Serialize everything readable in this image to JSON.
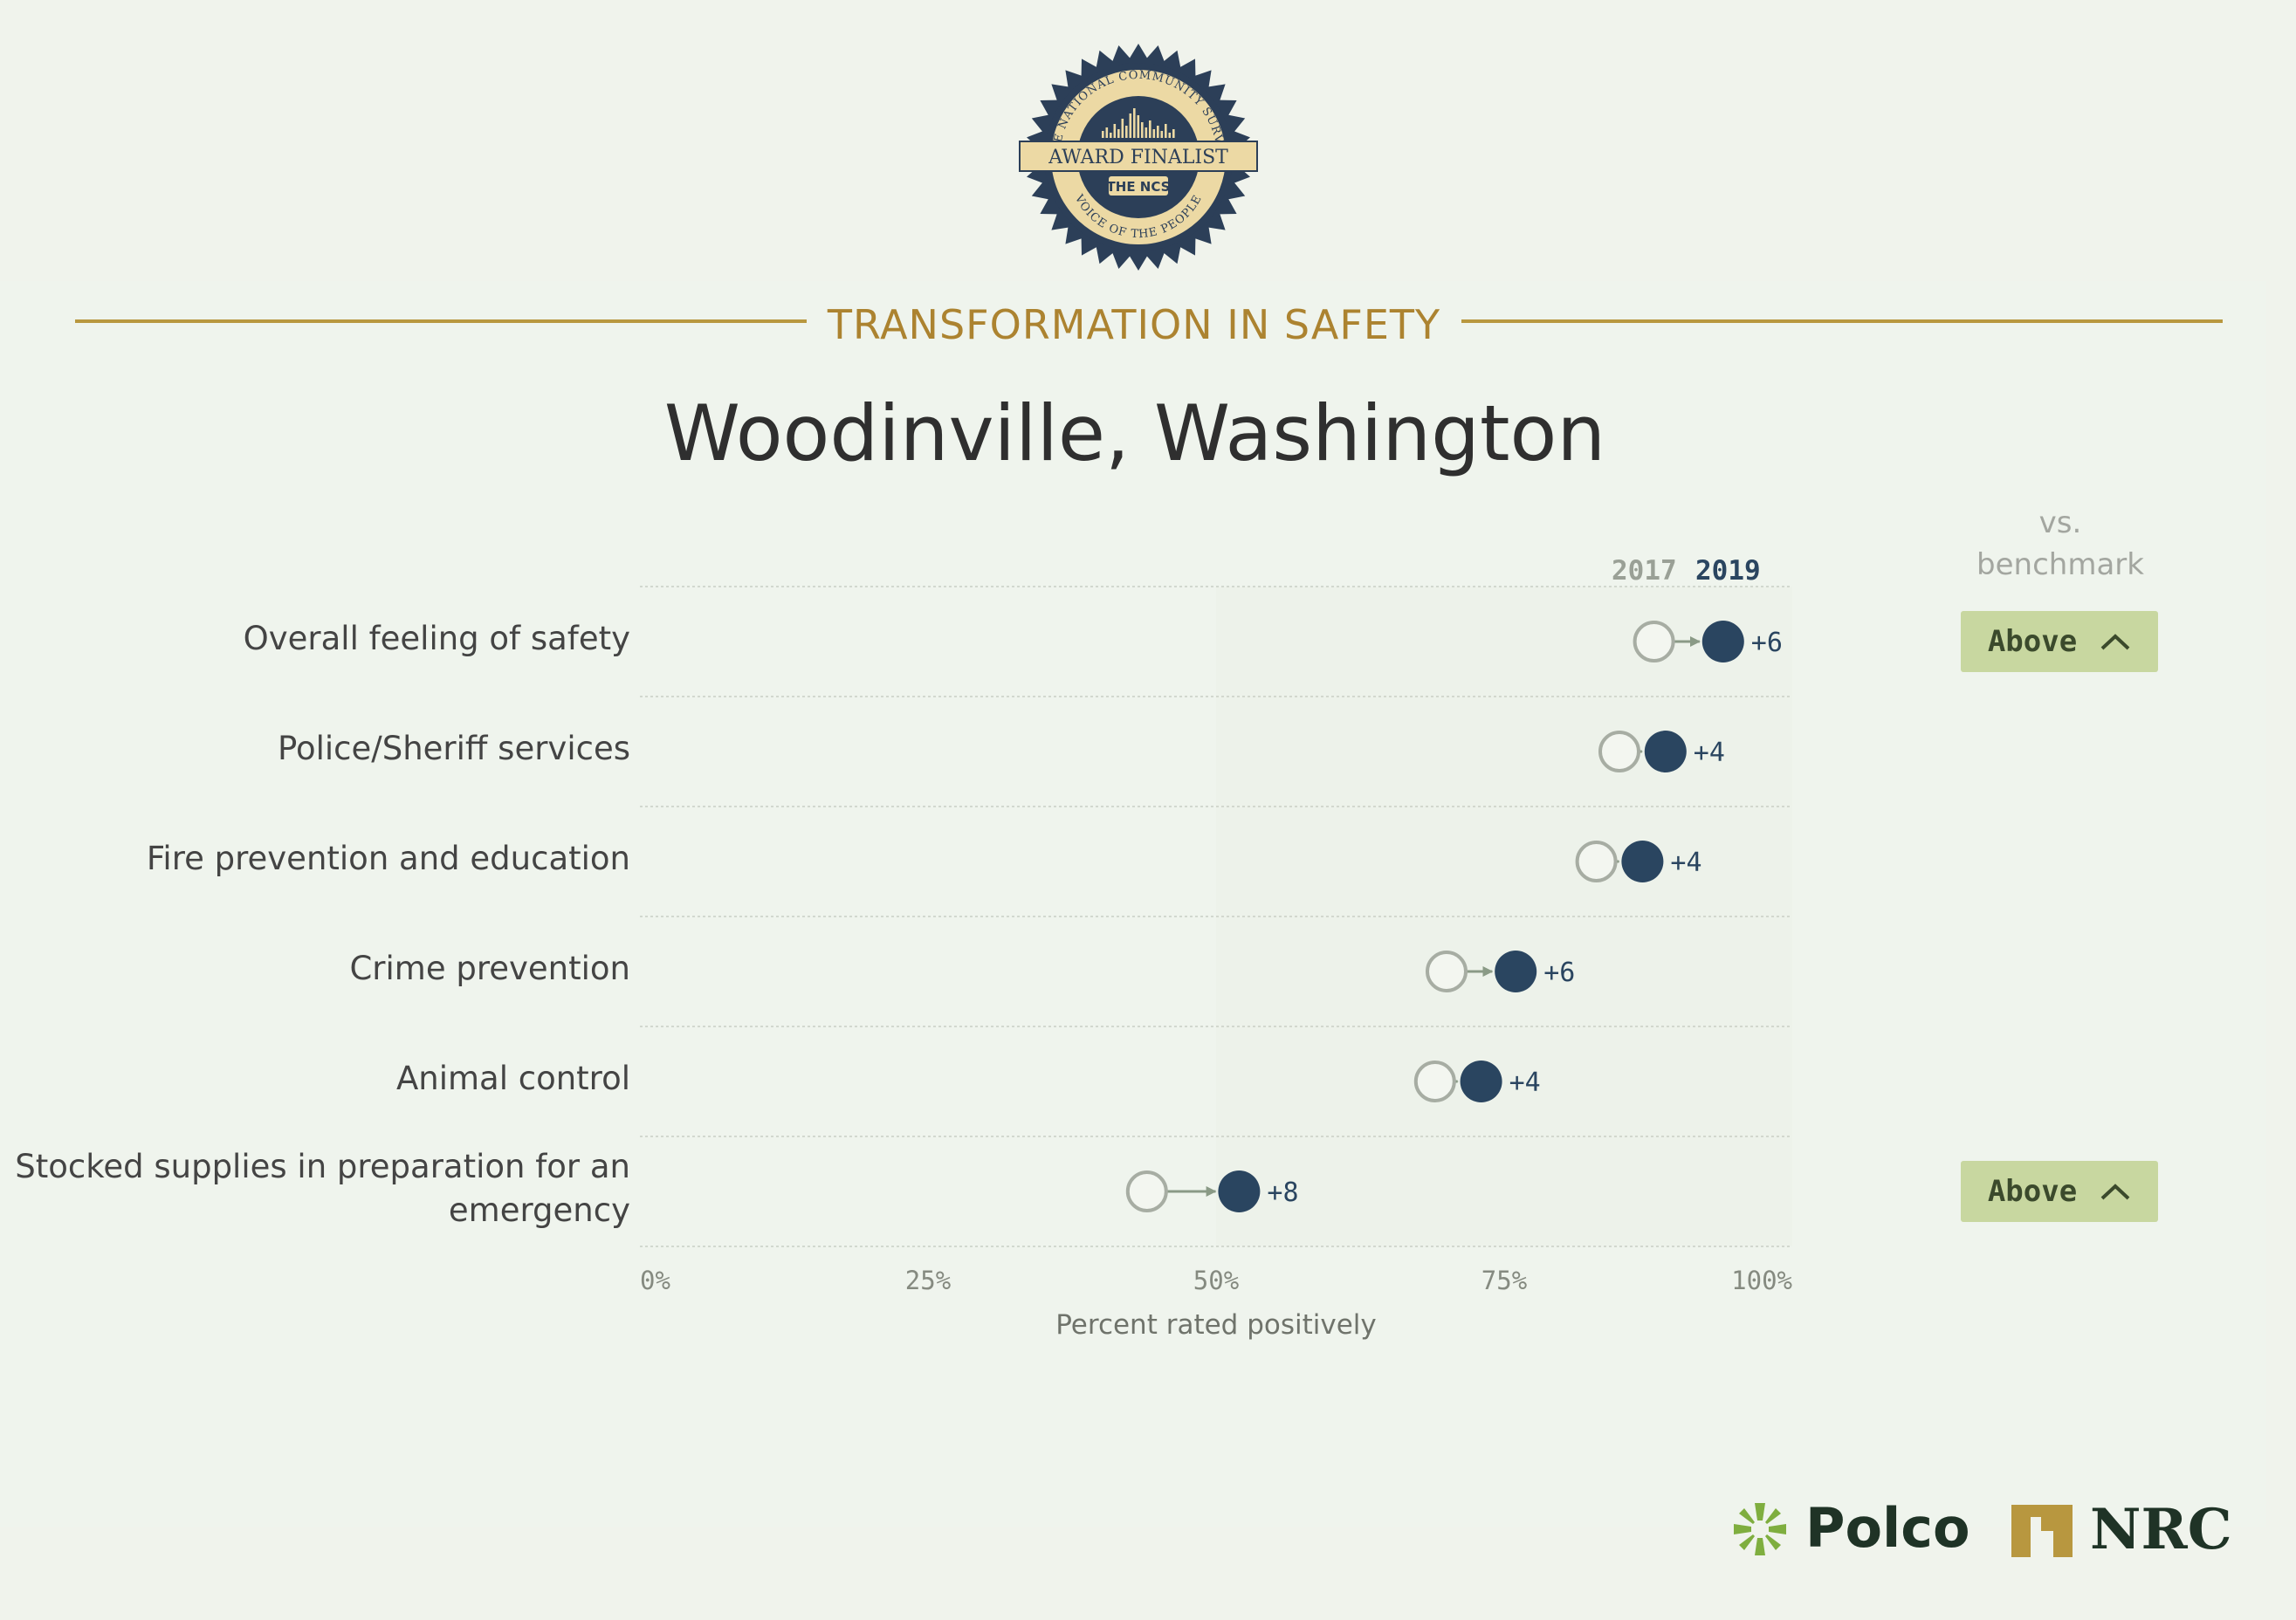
{
  "badge": {
    "arc_top": "THE NATIONAL COMMUNITY SURVEY",
    "ribbon": "AWARD FINALIST",
    "mark": "THE NCS",
    "arc_bottom": "VOICE OF THE PEOPLE"
  },
  "header": {
    "kicker": "TRANSFORMATION IN SAFETY",
    "title": "Woodinville, Washington"
  },
  "legend": {
    "year_old": "2017",
    "year_new": "2019",
    "benchmark_line1": "vs.",
    "benchmark_line2": "benchmark"
  },
  "colors": {
    "accent_gold": "#b8973f",
    "dot_2019": "#2a4560",
    "dot_2017": "#a7ada3",
    "benchmark_badge": "#c8d7a0"
  },
  "chart_data": {
    "type": "dumbbell",
    "x_label": "Percent rated positively",
    "x_ticks": [
      "0%",
      "25%",
      "50%",
      "75%",
      "100%"
    ],
    "xlim": [
      0,
      100
    ],
    "series": [
      {
        "name": "2017"
      },
      {
        "name": "2019"
      }
    ],
    "rows": [
      {
        "label": "Overall feeling of safety",
        "y2017": 88,
        "y2019": 94,
        "change": "+6",
        "benchmark": "Above"
      },
      {
        "label": "Police/Sheriff services",
        "y2017": 85,
        "y2019": 89,
        "change": "+4",
        "benchmark": ""
      },
      {
        "label": "Fire prevention and education",
        "y2017": 83,
        "y2019": 87,
        "change": "+4",
        "benchmark": ""
      },
      {
        "label": "Crime prevention",
        "y2017": 70,
        "y2019": 76,
        "change": "+6",
        "benchmark": ""
      },
      {
        "label": "Animal control",
        "y2017": 69,
        "y2019": 73,
        "change": "+4",
        "benchmark": ""
      },
      {
        "label": "Stocked supplies in preparation for an emergency",
        "y2017": 44,
        "y2019": 52,
        "change": "+8",
        "benchmark": "Above"
      }
    ]
  },
  "footer": {
    "logo1": "Polco",
    "logo2": "NRC"
  }
}
